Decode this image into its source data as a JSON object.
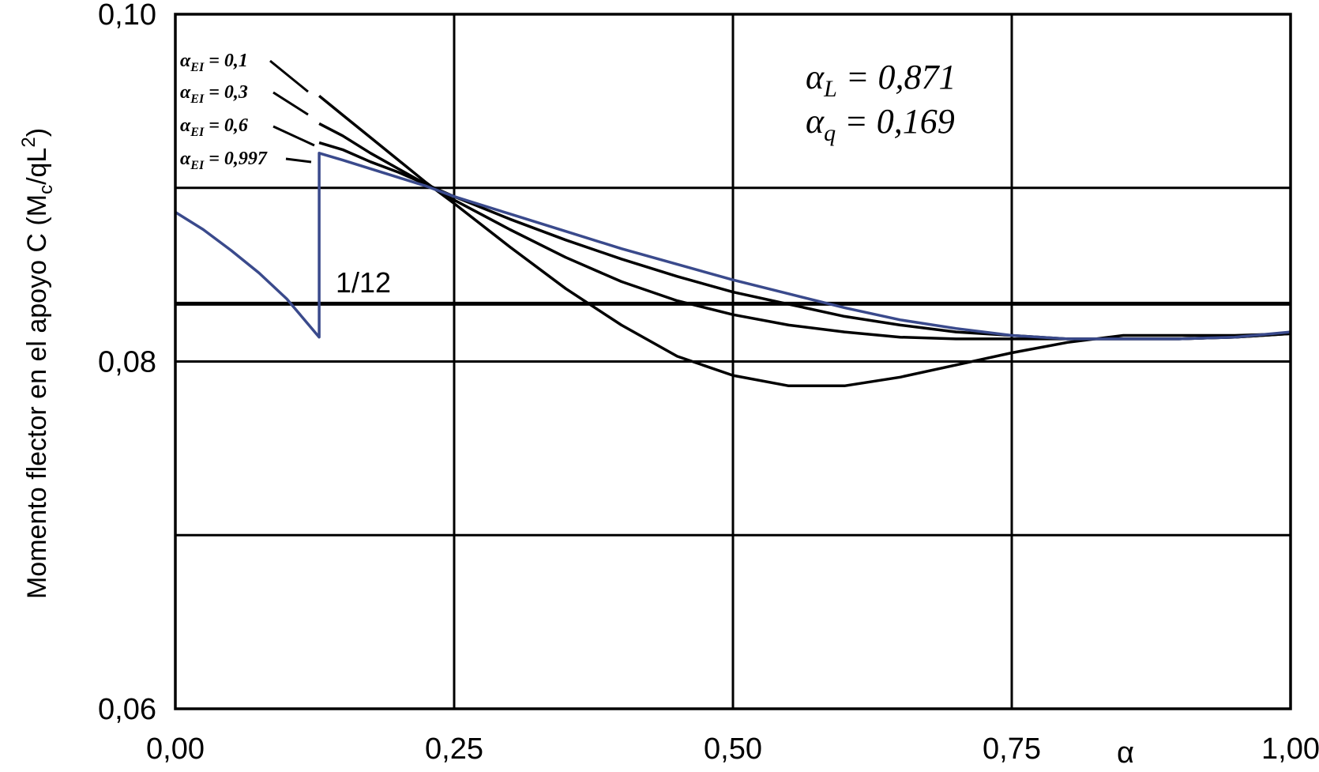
{
  "chart_data": {
    "type": "line",
    "xlabel": "α",
    "ylabel_parts": {
      "main": "Momento flector en el apoyo C (M",
      "sub": "c",
      "mid": "/qL",
      "sup": "2",
      "end": ")"
    },
    "xlim": [
      0,
      1
    ],
    "ylim": [
      0.06,
      0.1
    ],
    "x_ticks": [
      0,
      0.25,
      0.5,
      0.75,
      1
    ],
    "x_tick_labels": [
      "0,00",
      "0,25",
      "0,50",
      "0,75",
      "1,00"
    ],
    "y_gridlines": [
      0.06,
      0.07,
      0.08,
      0.09,
      0.1
    ],
    "y_tick_labels": [
      {
        "value": 0.06,
        "label": "0,06"
      },
      {
        "value": 0.08,
        "label": "0,08"
      },
      {
        "value": 0.1,
        "label": "0,10"
      }
    ],
    "grid": true,
    "reference_line": {
      "value": 0.08333,
      "label": "1/12"
    },
    "annotations": [
      {
        "main": "α",
        "sub": "L",
        "text": " = 0,871"
      },
      {
        "main": "α",
        "sub": "q",
        "text": " = 0,169"
      }
    ],
    "series": [
      {
        "name": "αEI = 0,1",
        "label_parts": {
          "main": "α",
          "sub": "EI",
          "text": " = 0,1"
        },
        "color": "#000000",
        "x": [
          0.129,
          0.15,
          0.175,
          0.2,
          0.225,
          0.25,
          0.3,
          0.35,
          0.4,
          0.45,
          0.5,
          0.55,
          0.6,
          0.65,
          0.7,
          0.75,
          0.8,
          0.85,
          0.9,
          0.95,
          1.0
        ],
        "y": [
          0.0953,
          0.0942,
          0.0929,
          0.0916,
          0.0903,
          0.0891,
          0.0866,
          0.0842,
          0.0821,
          0.0803,
          0.0792,
          0.0786,
          0.0786,
          0.0791,
          0.0798,
          0.0805,
          0.0811,
          0.0815,
          0.0815,
          0.0815,
          0.0816
        ]
      },
      {
        "name": "αEI = 0,3",
        "label_parts": {
          "main": "α",
          "sub": "EI",
          "text": " = 0,3"
        },
        "color": "#000000",
        "x": [
          0.129,
          0.15,
          0.175,
          0.2,
          0.225,
          0.25,
          0.3,
          0.35,
          0.4,
          0.45,
          0.5,
          0.55,
          0.6,
          0.65,
          0.7,
          0.75,
          0.8,
          0.85,
          0.9,
          0.95,
          1.0
        ],
        "y": [
          0.0937,
          0.093,
          0.092,
          0.0911,
          0.0902,
          0.0893,
          0.0876,
          0.086,
          0.0846,
          0.0835,
          0.0827,
          0.0821,
          0.0817,
          0.0814,
          0.0813,
          0.0813,
          0.0813,
          0.0813,
          0.0813,
          0.0814,
          0.0816
        ]
      },
      {
        "name": "αEI = 0,6",
        "label_parts": {
          "main": "α",
          "sub": "EI",
          "text": " = 0,6"
        },
        "color": "#000000",
        "x": [
          0.129,
          0.15,
          0.175,
          0.2,
          0.225,
          0.25,
          0.3,
          0.35,
          0.4,
          0.45,
          0.5,
          0.55,
          0.6,
          0.65,
          0.7,
          0.75,
          0.8,
          0.85,
          0.9,
          0.95,
          1.0
        ],
        "y": [
          0.0926,
          0.0922,
          0.0915,
          0.0909,
          0.0902,
          0.0895,
          0.0882,
          0.087,
          0.0859,
          0.0849,
          0.084,
          0.0833,
          0.0826,
          0.0821,
          0.0817,
          0.0815,
          0.0813,
          0.0813,
          0.0813,
          0.0814,
          0.0816
        ]
      },
      {
        "name": "αEI = 0,997",
        "label_parts": {
          "main": "α",
          "sub": "EI",
          "text": " = 0,997"
        },
        "color": "#3a4a8c",
        "x": [
          0.0,
          0.025,
          0.05,
          0.075,
          0.1,
          0.129,
          0.129,
          0.15,
          0.175,
          0.2,
          0.225,
          0.25,
          0.3,
          0.35,
          0.4,
          0.45,
          0.5,
          0.55,
          0.6,
          0.65,
          0.7,
          0.75,
          0.8,
          0.85,
          0.9,
          0.95,
          1.0
        ],
        "y": [
          0.0886,
          0.0876,
          0.0864,
          0.0851,
          0.0836,
          0.0814,
          0.092,
          0.0916,
          0.0911,
          0.0906,
          0.0901,
          0.0895,
          0.0885,
          0.0875,
          0.0865,
          0.0856,
          0.0847,
          0.0839,
          0.0831,
          0.0824,
          0.0819,
          0.0815,
          0.0813,
          0.0813,
          0.0813,
          0.0814,
          0.0817
        ]
      }
    ]
  }
}
